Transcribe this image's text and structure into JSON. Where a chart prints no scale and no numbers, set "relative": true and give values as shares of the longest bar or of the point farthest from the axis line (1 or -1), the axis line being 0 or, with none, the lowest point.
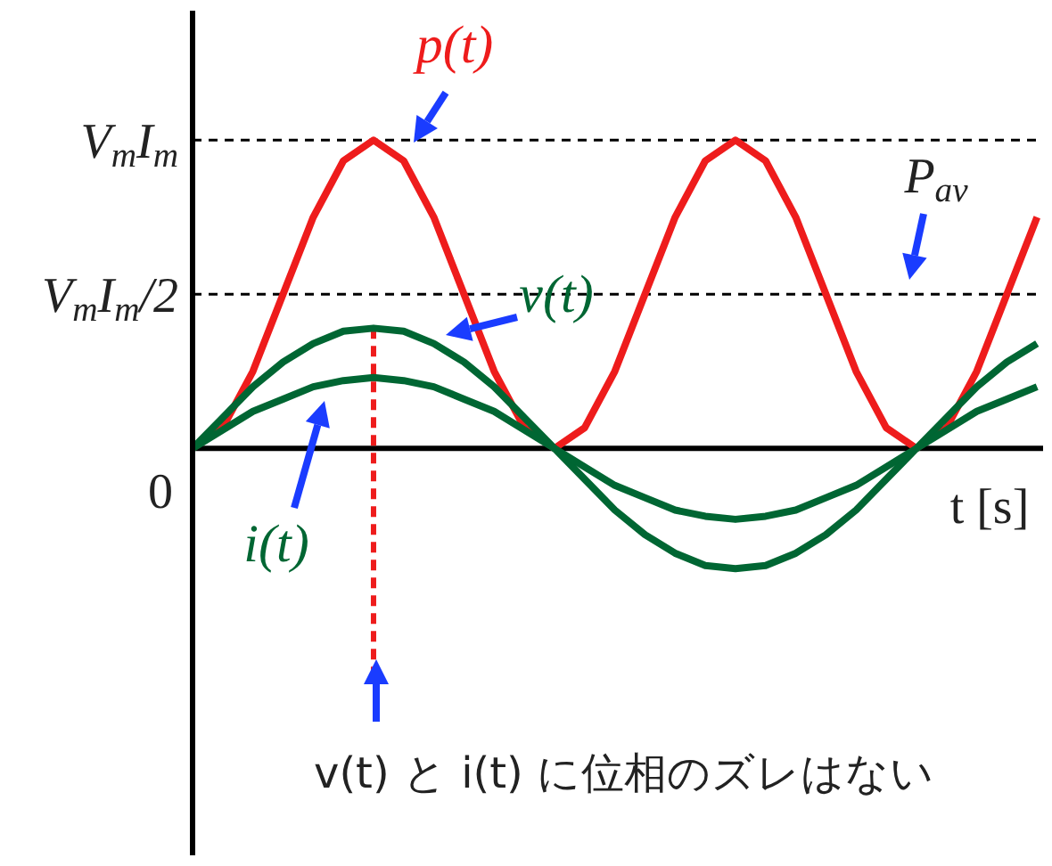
{
  "chart_data": {
    "type": "line",
    "xlabel": "t [s]",
    "relative": true,
    "categories": [
      null,
      null,
      null,
      null,
      null,
      null,
      null,
      null,
      null,
      null,
      null,
      null,
      null,
      null,
      null,
      null,
      null,
      null,
      null,
      null,
      null,
      null,
      null,
      null,
      null,
      null,
      null,
      null,
      null
    ],
    "grid": false,
    "marker": "none",
    "line_style": "solid",
    "series": [
      {
        "name": "p(t)",
        "color": "#ee1c1c",
        "values": [
          0,
          0.067,
          0.25,
          0.5,
          0.75,
          0.933,
          1,
          0.933,
          0.75,
          0.5,
          0.25,
          0.067,
          0,
          0.067,
          0.25,
          0.5,
          0.75,
          0.933,
          1,
          0.933,
          0.75,
          0.5,
          0.25,
          0.067,
          0,
          0.067,
          0.25,
          0.5,
          0.75
        ]
      },
      {
        "name": "v(t)",
        "color": "#006633",
        "values": [
          0,
          0.1,
          0.2,
          0.28,
          0.34,
          0.38,
          0.39,
          0.38,
          0.34,
          0.28,
          0.2,
          0.1,
          0,
          -0.1,
          -0.2,
          -0.28,
          -0.34,
          -0.38,
          -0.39,
          -0.38,
          -0.34,
          -0.28,
          -0.2,
          -0.1,
          0,
          0.1,
          0.2,
          0.28,
          0.34
        ]
      },
      {
        "name": "i(t)",
        "color": "#006633",
        "values": [
          0,
          0.06,
          0.12,
          0.16,
          0.2,
          0.22,
          0.23,
          0.22,
          0.2,
          0.16,
          0.12,
          0.06,
          0,
          -0.06,
          -0.12,
          -0.16,
          -0.2,
          -0.22,
          -0.23,
          -0.22,
          -0.2,
          -0.16,
          -0.12,
          -0.06,
          0,
          0.06,
          0.12,
          0.16,
          0.2
        ]
      }
    ],
    "ref_lines": [
      {
        "axis": "y",
        "value": 1,
        "label": "V$_{m}$I$_{m}$",
        "color": "#000000",
        "line_style": "dashed"
      },
      {
        "axis": "y",
        "value": 0.5,
        "label": "V$_{m}$I$_{m}$/2",
        "color": "#000000",
        "line_style": "dashed"
      }
    ],
    "annotations": [
      "0",
      "P$_{av}$",
      "v(t) と i(t) に位相のズレはない"
    ]
  }
}
